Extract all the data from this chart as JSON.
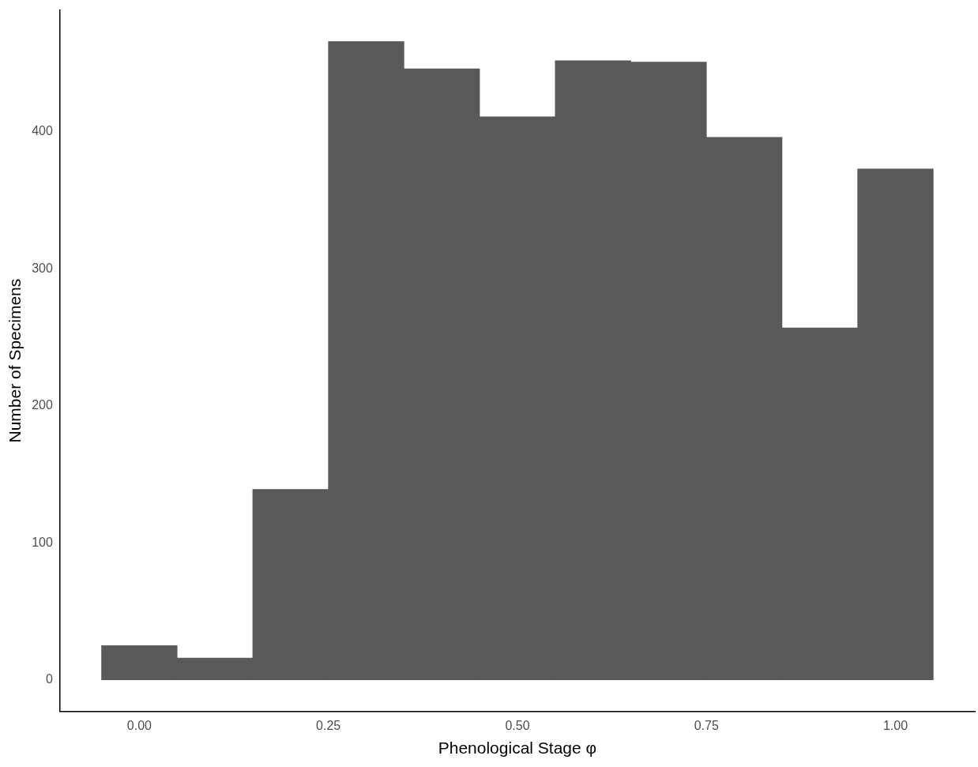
{
  "chart_data": {
    "type": "histogram",
    "xlabel": "Phenological Stage φ",
    "ylabel": "Number of Specimens",
    "color": "#595959",
    "bins": [
      -0.05,
      0.05,
      0.15,
      0.25,
      0.35,
      0.45,
      0.55,
      0.65,
      0.75,
      0.85,
      0.95,
      1.05
    ],
    "values": [
      25,
      16,
      139,
      466,
      446,
      411,
      452,
      451,
      396,
      257,
      373
    ],
    "xlim": [
      -0.105,
      1.105
    ],
    "ylim": [
      -23,
      489
    ],
    "xticks": [
      {
        "value": 0,
        "label": "0.00"
      },
      {
        "value": 0.25,
        "label": "0.25"
      },
      {
        "value": 0.5,
        "label": "0.50"
      },
      {
        "value": 0.75,
        "label": "0.75"
      },
      {
        "value": 1,
        "label": "1.00"
      }
    ],
    "yticks": [
      0,
      100,
      200,
      300,
      400
    ]
  }
}
